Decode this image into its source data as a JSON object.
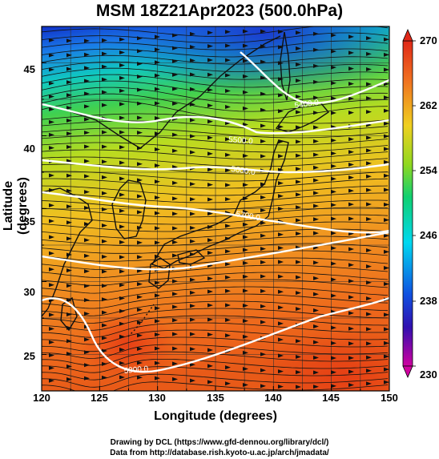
{
  "title": "MSM 18Z21Apr2023 (500.0hPa)",
  "axes": {
    "xlabel": "Longitude (degrees)",
    "ylabel": "Latitude  (degrees)",
    "xticks": [
      "120",
      "125",
      "130",
      "135",
      "140",
      "145",
      "150"
    ],
    "yticks": [
      "45",
      "40",
      "35",
      "30",
      "25"
    ]
  },
  "colorbar": {
    "ticks": [
      "270",
      "262",
      "254",
      "246",
      "238",
      "230"
    ],
    "min": 230,
    "max": 270,
    "colors": [
      "#d0009f",
      "#1010b0",
      "#1a6ee8",
      "#00d0f0",
      "#10d070",
      "#a8dc20",
      "#f0d020",
      "#f08020",
      "#e83818"
    ]
  },
  "contours": {
    "labels": [
      "5400.0",
      "5500.0",
      "5600.0",
      "5700.0",
      "5800.0",
      "5900.0"
    ]
  },
  "credits": {
    "line1": "Drawing by DCL (https://www.gfd-dennou.org/library/dcl/)",
    "line2": "Data from http://database.rish.kyoto-u.ac.jp/arch/jmadata/"
  },
  "map": {
    "lon_range": [
      120,
      150
    ],
    "lat_range": [
      22.5,
      47.5
    ]
  }
}
